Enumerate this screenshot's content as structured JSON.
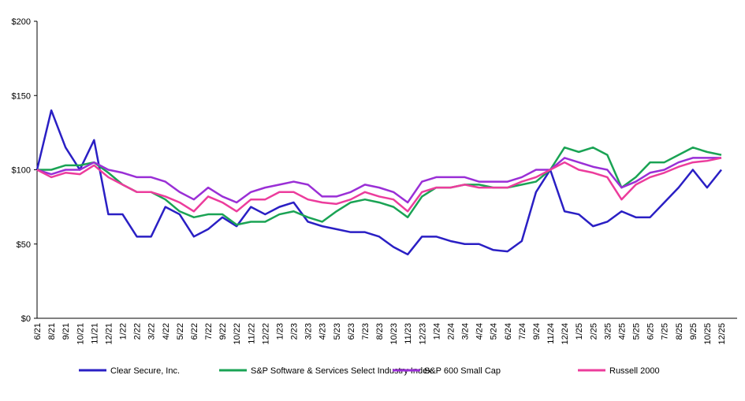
{
  "chart_data": {
    "type": "line",
    "categories": [
      "6/21",
      "8/21",
      "9/21",
      "10/21",
      "11/21",
      "12/21",
      "1/22",
      "2/22",
      "3/22",
      "4/22",
      "5/22",
      "6/22",
      "7/22",
      "9/22",
      "10/22",
      "11/22",
      "12/22",
      "1/23",
      "2/23",
      "3/23",
      "4/23",
      "5/23",
      "6/23",
      "7/23",
      "8/23",
      "10/23",
      "11/23",
      "12/23",
      "1/24",
      "2/24",
      "3/24",
      "4/24",
      "5/24",
      "6/24",
      "7/24",
      "9/24",
      "11/24",
      "12/24",
      "1/25",
      "2/25",
      "3/25",
      "4/25",
      "5/25",
      "6/25",
      "7/25",
      "8/25",
      "9/25",
      "10/25",
      "12/25"
    ],
    "series": [
      {
        "name": "Clear Secure, Inc.",
        "color": "#2a1fc4",
        "values": [
          100,
          140,
          115,
          100,
          120,
          70,
          70,
          55,
          55,
          75,
          70,
          55,
          60,
          68,
          62,
          75,
          70,
          75,
          78,
          65,
          62,
          60,
          58,
          58,
          55,
          48,
          43,
          55,
          55,
          52,
          50,
          50,
          46,
          45,
          52,
          85,
          100,
          72,
          70,
          62,
          65,
          72,
          68,
          68,
          78,
          88,
          100,
          88,
          100
        ]
      },
      {
        "name": "S&P Software & Services Select Industry Index",
        "color": "#1aa354",
        "values": [
          100,
          100,
          103,
          103,
          105,
          98,
          90,
          85,
          85,
          80,
          72,
          68,
          70,
          70,
          63,
          65,
          65,
          70,
          72,
          68,
          65,
          72,
          78,
          80,
          78,
          75,
          68,
          82,
          88,
          88,
          90,
          90,
          88,
          88,
          90,
          92,
          100,
          115,
          112,
          115,
          110,
          88,
          95,
          105,
          105,
          110,
          115,
          112,
          110
        ]
      },
      {
        "name": "S&P 600 Small Cap",
        "color": "#9a2fd6",
        "values": [
          100,
          97,
          100,
          100,
          105,
          100,
          98,
          95,
          95,
          92,
          85,
          80,
          88,
          82,
          78,
          85,
          88,
          90,
          92,
          90,
          82,
          82,
          85,
          90,
          88,
          85,
          78,
          92,
          95,
          95,
          95,
          92,
          92,
          92,
          95,
          100,
          100,
          108,
          105,
          102,
          100,
          88,
          92,
          98,
          100,
          105,
          108,
          108,
          108
        ]
      },
      {
        "name": "Russell 2000",
        "color": "#ec3c9c",
        "values": [
          100,
          95,
          98,
          97,
          103,
          95,
          90,
          85,
          85,
          82,
          78,
          72,
          82,
          78,
          72,
          80,
          80,
          85,
          85,
          80,
          78,
          77,
          80,
          85,
          82,
          80,
          72,
          85,
          88,
          88,
          90,
          88,
          88,
          88,
          92,
          95,
          100,
          105,
          100,
          98,
          95,
          80,
          90,
          95,
          98,
          102,
          105,
          106,
          108
        ]
      }
    ],
    "ylim": [
      0,
      200
    ],
    "yticks": [
      {
        "value": 0,
        "label": "$0"
      },
      {
        "value": 50,
        "label": "$50"
      },
      {
        "value": 100,
        "label": "$100"
      },
      {
        "value": 150,
        "label": "$150"
      },
      {
        "value": 200,
        "label": "$200"
      }
    ]
  }
}
